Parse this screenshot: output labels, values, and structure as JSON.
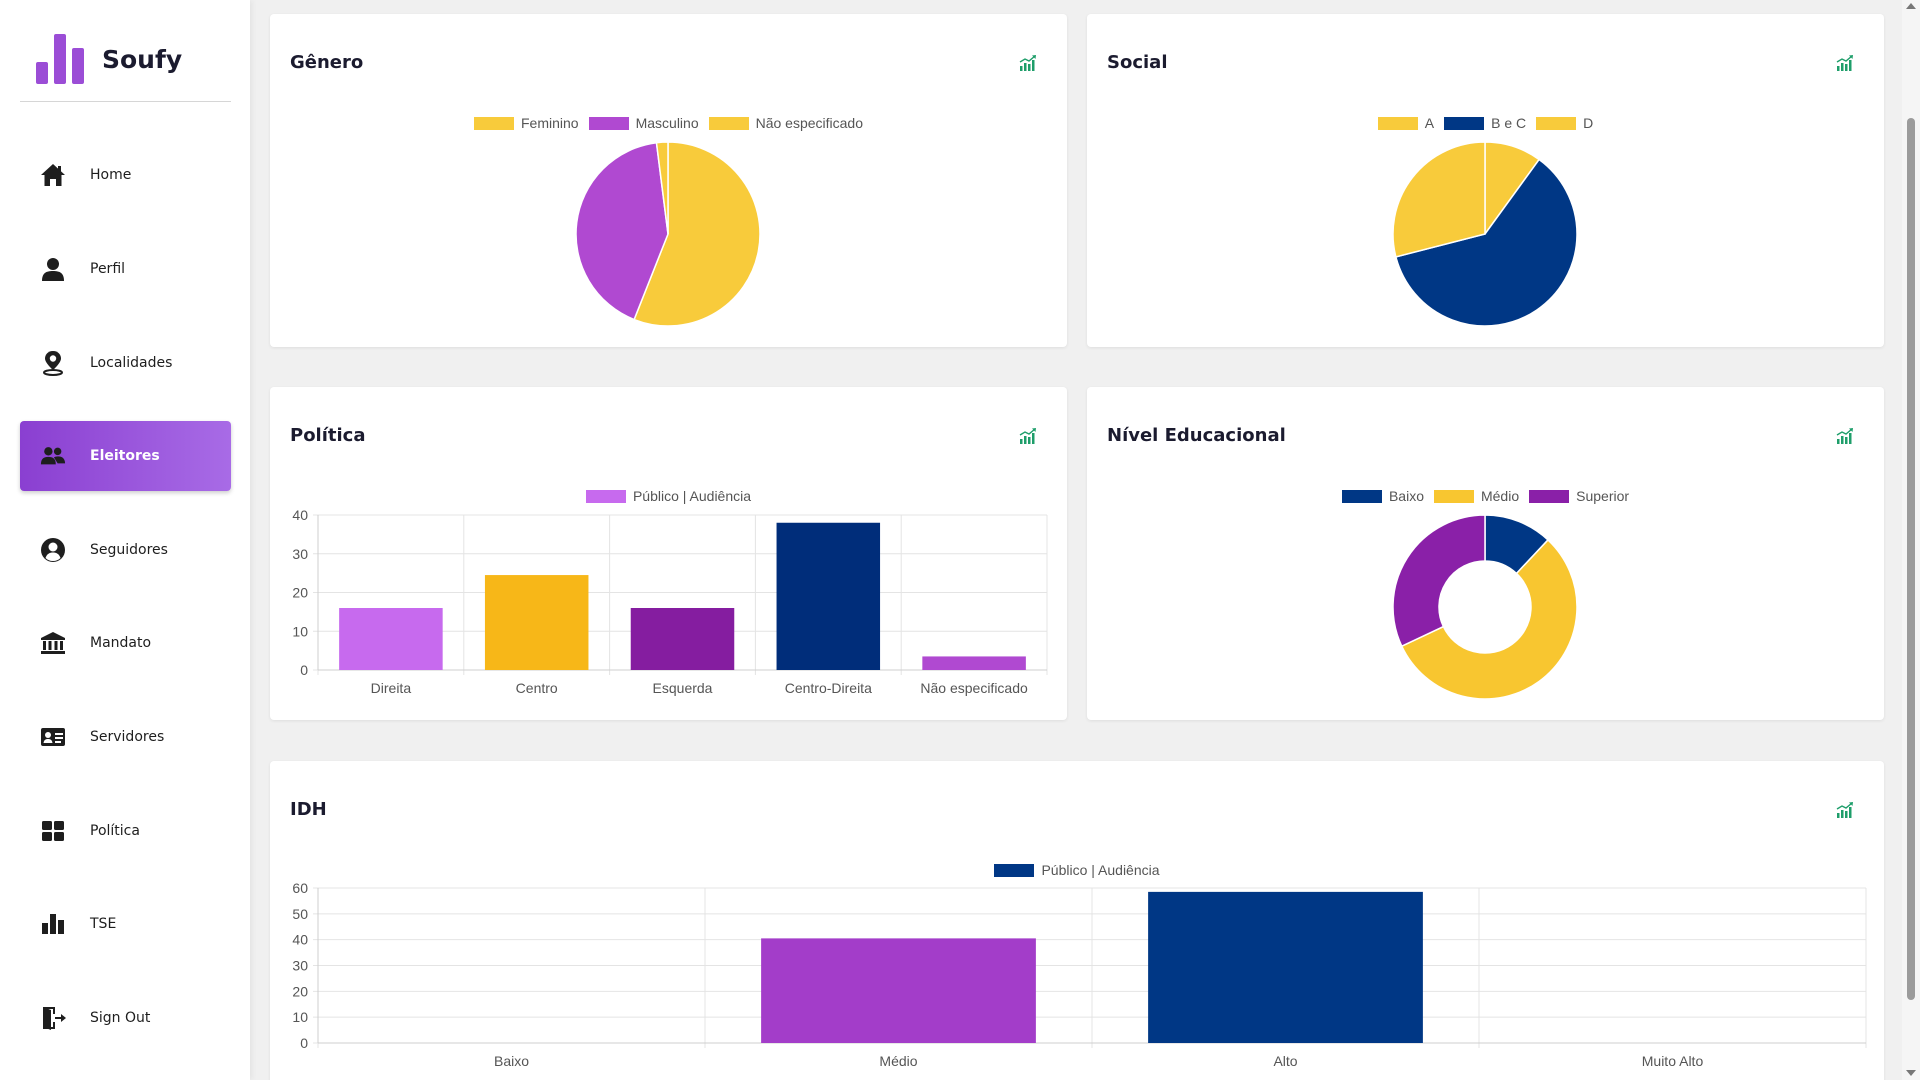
{
  "app": {
    "title": "Soufy"
  },
  "colors": {
    "accent": "#8a3fd1",
    "trend_icon": "#1e9e6a",
    "yellow": "#f8cb3b",
    "purple": "#b049d1",
    "navy": "#003785"
  },
  "sidebar": {
    "items": [
      {
        "label": "Home",
        "icon": "home-icon",
        "active": false
      },
      {
        "label": "Perfil",
        "icon": "user-icon",
        "active": false
      },
      {
        "label": "Localidades",
        "icon": "map-pin-icon",
        "active": false
      },
      {
        "label": "Eleitores",
        "icon": "users-icon",
        "active": true
      },
      {
        "label": "Seguidores",
        "icon": "user-circle-icon",
        "active": false
      },
      {
        "label": "Mandato",
        "icon": "institution-icon",
        "active": false
      },
      {
        "label": "Servidores",
        "icon": "id-card-icon",
        "active": false
      },
      {
        "label": "Política",
        "icon": "grid-icon",
        "active": false
      },
      {
        "label": "TSE",
        "icon": "bar-chart-icon",
        "active": false
      },
      {
        "label": "Sign Out",
        "icon": "sign-out-icon",
        "active": false
      }
    ]
  },
  "cards": {
    "genero": {
      "title": "Gênero",
      "icon": "trend-chart-icon"
    },
    "social": {
      "title": "Social",
      "icon": "trend-chart-icon"
    },
    "politica": {
      "title": "Política",
      "icon": "trend-chart-icon"
    },
    "educacional": {
      "title": "Nível Educacional",
      "icon": "trend-chart-icon"
    },
    "idh": {
      "title": "IDH",
      "icon": "trend-chart-icon"
    }
  },
  "chart_data": [
    {
      "id": "genero",
      "type": "pie",
      "title": "Gênero",
      "legend_position": "top",
      "labels": [
        "Feminino",
        "Masculino",
        "Não especificado"
      ],
      "values": [
        56,
        42,
        2
      ],
      "colors": [
        "#f8cb3b",
        "#b049d1",
        "#f8cb3b"
      ]
    },
    {
      "id": "social",
      "type": "pie",
      "title": "Social",
      "legend_position": "top",
      "labels": [
        "A",
        "B e C",
        "D"
      ],
      "values": [
        10,
        61,
        29
      ],
      "colors": [
        "#f8cb3b",
        "#003785",
        "#f8cb3b"
      ]
    },
    {
      "id": "politica",
      "type": "bar",
      "title": "Política",
      "legend_position": "top",
      "categories": [
        "Direita",
        "Centro",
        "Esquerda",
        "Centro-Direita",
        "Não especificado"
      ],
      "series": [
        {
          "name": "Público | Audiência",
          "values": [
            16,
            24.5,
            16,
            38,
            3.5
          ]
        }
      ],
      "bar_colors": [
        "#c76aee",
        "#f7b718",
        "#851da0",
        "#002d7a",
        "#b049d1"
      ],
      "legend_color": "#c76aee",
      "yticks": [
        "0",
        "10",
        "20",
        "30",
        "40"
      ],
      "ylim": [
        0,
        40
      ],
      "grid": true
    },
    {
      "id": "educacional",
      "type": "doughnut",
      "title": "Nível Educacional",
      "legend_position": "top",
      "labels": [
        "Baixo",
        "Médio",
        "Superior"
      ],
      "values": [
        12,
        56,
        32
      ],
      "colors": [
        "#003785",
        "#f8c630",
        "#8a20a8"
      ]
    },
    {
      "id": "idh",
      "type": "bar",
      "title": "IDH",
      "legend_position": "top",
      "categories": [
        "Baixo",
        "Médio",
        "Alto",
        "Muito Alto"
      ],
      "series": [
        {
          "name": "Público | Audiência",
          "values": [
            0,
            40.5,
            58.5,
            0
          ]
        }
      ],
      "bar_colors": [
        "#a33dc9",
        "#a33dc9",
        "#003785",
        "#003785"
      ],
      "legend_color": "#003785",
      "yticks": [
        "0",
        "10",
        "20",
        "30",
        "40",
        "50",
        "60"
      ],
      "ylim": [
        0,
        60
      ],
      "grid": true
    }
  ]
}
